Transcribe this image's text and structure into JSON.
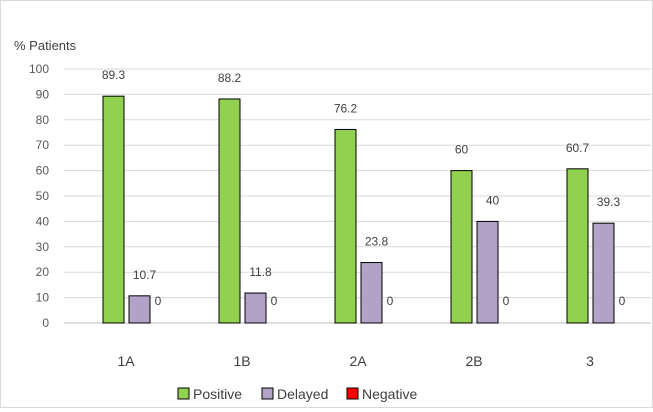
{
  "chart_data": {
    "type": "bar",
    "title": "",
    "xlabel": "",
    "ylabel": "% Patients",
    "ylim": [
      0,
      100
    ],
    "yticks": [
      0,
      10,
      20,
      30,
      40,
      50,
      60,
      70,
      80,
      90,
      100
    ],
    "grid": true,
    "legend_position": "bottom",
    "categories": [
      "1A",
      "1B",
      "2A",
      "2B",
      "3"
    ],
    "series": [
      {
        "name": "Positive",
        "color": "#92d050",
        "values": [
          89.3,
          88.2,
          76.2,
          60,
          60.7
        ],
        "labels": [
          "89.3",
          "88.2",
          "76.2",
          "60",
          "60.7"
        ]
      },
      {
        "name": "Delayed",
        "color": "#b3a2c7",
        "values": [
          10.7,
          11.8,
          23.8,
          40,
          39.3
        ],
        "labels": [
          "10.7",
          "11.8",
          "23.8",
          "40",
          "39.3"
        ]
      },
      {
        "name": "Negative",
        "color": "#ff0000",
        "values": [
          0,
          0,
          0,
          0,
          0
        ],
        "labels": [
          "0",
          "0",
          "0",
          "0",
          "0"
        ]
      }
    ]
  }
}
